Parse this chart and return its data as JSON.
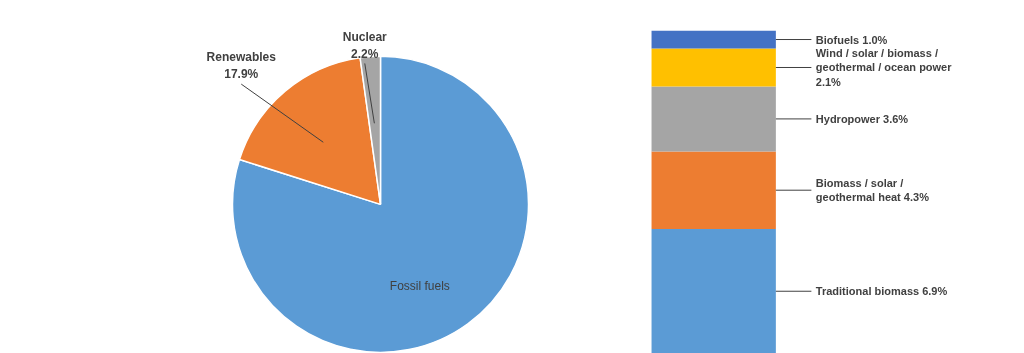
{
  "chart_data": [
    {
      "type": "pie",
      "categories": [
        "Fossil fuels",
        "Renewables",
        "Nuclear"
      ],
      "values": [
        79.9,
        17.9,
        2.2
      ],
      "colors": [
        "#5b9bd5",
        "#ed7d31",
        "#a5a5a5"
      ],
      "value_labels": [
        null,
        "17.9%",
        "2.2%"
      ],
      "legend": false
    },
    {
      "type": "bar",
      "stacked": true,
      "categories": [
        null
      ],
      "legend": false,
      "series": [
        {
          "name": "Traditional biomass",
          "color": "#5b9bd5",
          "values": [
            6.9
          ],
          "value_labels": [
            "6.9%"
          ]
        },
        {
          "name": "Biomass / solar / geothermal heat",
          "color": "#ed7d31",
          "values": [
            4.3
          ],
          "value_labels": [
            "4.3%"
          ]
        },
        {
          "name": "Hydropower",
          "color": "#a5a5a5",
          "values": [
            3.6
          ],
          "value_labels": [
            "3.6%"
          ]
        },
        {
          "name": "Wind / solar / biomass / geothermal / ocean power",
          "color": "#ffc000",
          "values": [
            2.1
          ],
          "value_labels": [
            "2.1%"
          ]
        },
        {
          "name": "Biofuels",
          "color": "#4472c4",
          "values": [
            1.0
          ],
          "value_labels": [
            "1.0%"
          ]
        }
      ]
    }
  ]
}
